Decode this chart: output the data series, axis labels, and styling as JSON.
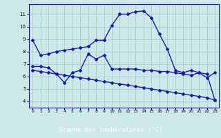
{
  "line1_x": [
    0,
    1,
    2,
    3,
    4,
    5,
    6,
    7,
    8,
    9,
    10,
    11,
    12,
    13,
    14,
    15,
    16,
    17,
    18,
    19,
    20,
    21,
    22,
    23
  ],
  "line1_y": [
    8.9,
    7.7,
    7.8,
    8.0,
    8.1,
    8.2,
    8.3,
    8.4,
    8.9,
    8.9,
    10.1,
    11.0,
    11.0,
    11.2,
    11.25,
    10.7,
    9.4,
    8.2,
    6.5,
    6.3,
    6.5,
    6.3,
    5.9,
    6.3
  ],
  "line2_x": [
    0,
    1,
    2,
    3,
    4,
    5,
    6,
    7,
    8,
    9,
    10,
    11,
    12,
    13,
    14,
    15,
    16,
    17,
    18,
    19,
    20,
    21,
    22,
    23
  ],
  "line2_y": [
    6.8,
    6.8,
    6.7,
    6.2,
    5.5,
    6.3,
    6.5,
    7.8,
    7.4,
    7.7,
    6.6,
    6.6,
    6.6,
    6.6,
    6.5,
    6.5,
    6.4,
    6.4,
    6.3,
    6.2,
    6.1,
    6.3,
    6.2,
    4.1
  ],
  "line3_x": [
    0,
    1,
    2,
    3,
    4,
    5,
    6,
    7,
    8,
    9,
    10,
    11,
    12,
    13,
    14,
    15,
    16,
    17,
    18,
    19,
    20,
    21,
    22,
    23
  ],
  "line3_y": [
    6.5,
    6.4,
    6.3,
    6.2,
    6.1,
    6.0,
    5.9,
    5.8,
    5.7,
    5.6,
    5.5,
    5.4,
    5.3,
    5.2,
    5.1,
    5.0,
    4.9,
    4.8,
    4.7,
    4.6,
    4.5,
    4.4,
    4.3,
    4.1
  ],
  "color": "#1a1aaa",
  "bg_color": "#cce8e8",
  "grid_color": "#aacccc",
  "xlabel": "Graphe des températures (°C)",
  "xlabel_bg": "#2020bb",
  "xlabel_color": "#ffffff",
  "ylim": [
    3.5,
    11.8
  ],
  "xlim": [
    -0.5,
    23.5
  ],
  "yticks": [
    4,
    5,
    6,
    7,
    8,
    9,
    10,
    11
  ],
  "xtick_labels": [
    "0",
    "1",
    "2",
    "3",
    "4",
    "5",
    "6",
    "7",
    "8",
    "9",
    "10",
    "11",
    "12",
    "13",
    "14",
    "15",
    "16",
    "17",
    "18",
    "19",
    "20",
    "21",
    "22",
    "23"
  ],
  "marker": "D",
  "marker_size": 2,
  "linewidth": 1.0
}
